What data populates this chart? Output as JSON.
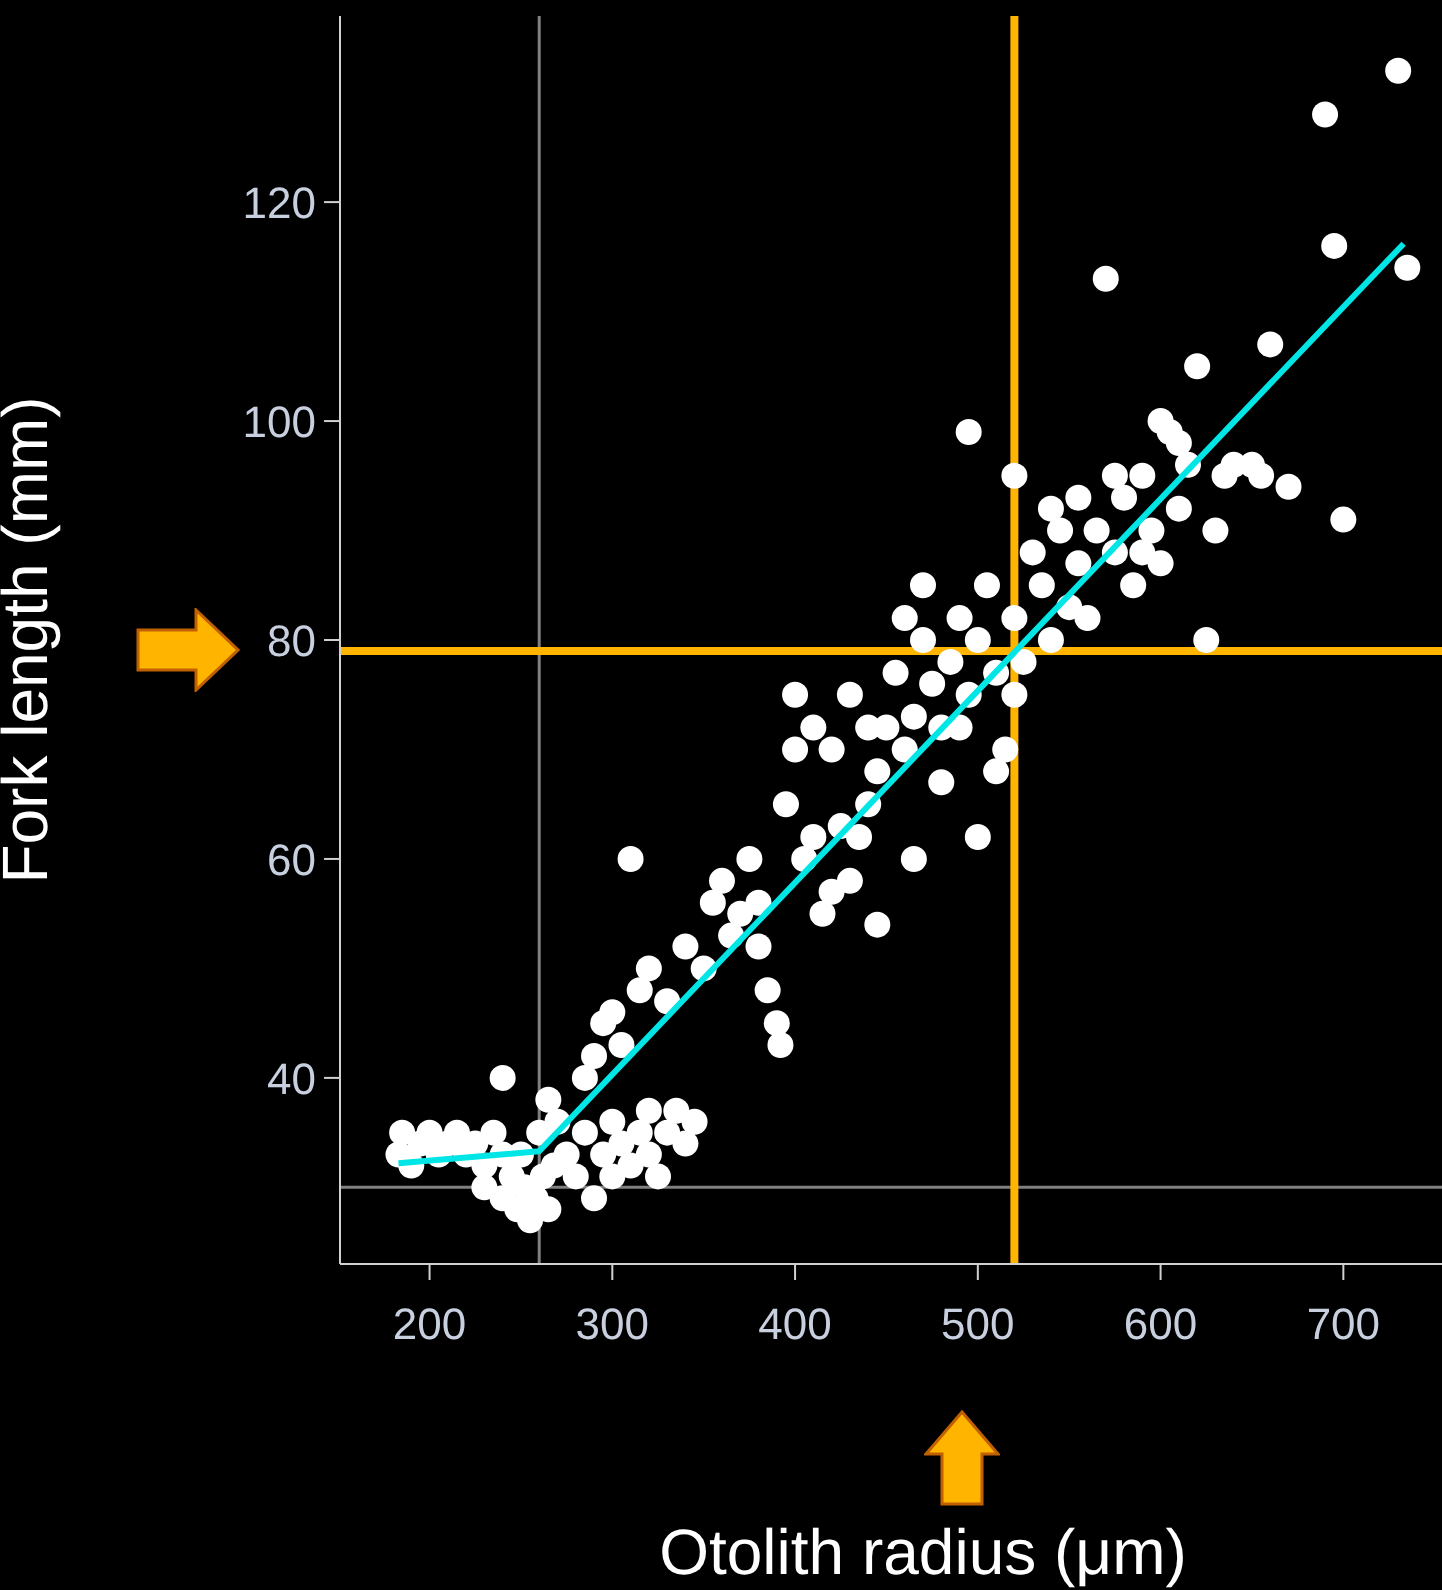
{
  "chart_data": {
    "type": "scatter",
    "xlabel": "Otolith radius (μm)",
    "ylabel": "Fork length (mm)",
    "xlim": [
      151,
      789
    ],
    "ylim": [
      23,
      137
    ],
    "xticks": [
      200,
      300,
      400,
      500,
      600,
      700
    ],
    "yticks": [
      40,
      60,
      80,
      100,
      120
    ],
    "marker": "circle",
    "series": [
      {
        "color": "#ffffff",
        "x": [
          183,
          185,
          190,
          195,
          200,
          205,
          210,
          215,
          220,
          225,
          230,
          235,
          240,
          245,
          230,
          240,
          248,
          252,
          255,
          258,
          262,
          265,
          250,
          260,
          268,
          270,
          265,
          240,
          275,
          280,
          285,
          290,
          295,
          300,
          305,
          310,
          315,
          320,
          325,
          330,
          335,
          340,
          345,
          300,
          320,
          285,
          290,
          295,
          300,
          305,
          310,
          315,
          320,
          330,
          340,
          350,
          355,
          360,
          365,
          370,
          375,
          380,
          385,
          390,
          392,
          380,
          395,
          400,
          405,
          410,
          415,
          420,
          425,
          430,
          435,
          440,
          445,
          400,
          410,
          420,
          430,
          440,
          445,
          450,
          455,
          460,
          465,
          470,
          475,
          480,
          485,
          490,
          495,
          500,
          505,
          510,
          515,
          520,
          525,
          530,
          535,
          540,
          545,
          550,
          555,
          560,
          565,
          570,
          575,
          580,
          585,
          590,
          595,
          600,
          605,
          610,
          615,
          620,
          625,
          630,
          635,
          640,
          650,
          655,
          660,
          670,
          690,
          695,
          700,
          730,
          735,
          465,
          480,
          495,
          500,
          520,
          510,
          490,
          470,
          460,
          520,
          540,
          555,
          600,
          610,
          575,
          590
        ],
        "values": [
          33,
          35,
          32,
          34,
          35,
          33,
          34,
          35,
          33,
          34,
          32,
          35,
          33,
          31,
          30,
          29,
          28,
          30,
          27,
          29,
          31,
          28,
          33,
          35,
          32,
          36,
          38,
          40,
          33,
          31,
          35,
          29,
          33,
          36,
          34,
          32,
          35,
          33,
          31,
          35,
          37,
          34,
          36,
          31,
          37,
          40,
          42,
          45,
          46,
          43,
          60,
          48,
          50,
          47,
          52,
          50,
          56,
          58,
          53,
          55,
          60,
          56,
          48,
          45,
          43,
          52,
          65,
          75,
          60,
          62,
          55,
          57,
          63,
          58,
          62,
          65,
          54,
          70,
          72,
          70,
          75,
          72,
          68,
          72,
          77,
          70,
          73,
          80,
          76,
          72,
          78,
          82,
          75,
          80,
          85,
          77,
          70,
          82,
          78,
          88,
          85,
          80,
          90,
          83,
          87,
          82,
          90,
          113,
          88,
          93,
          85,
          95,
          90,
          87,
          99,
          92,
          96,
          105,
          80,
          90,
          95,
          96,
          96,
          95,
          107,
          94,
          128,
          116,
          91,
          132,
          114,
          60,
          67,
          99,
          62,
          95,
          68,
          72,
          85,
          82,
          75,
          92,
          93,
          100,
          98,
          95,
          88
        ]
      },
      {
        "type": "line",
        "marker": "none",
        "color": "#00e5e5",
        "x": [
          183,
          260,
          733
        ],
        "values": [
          32.2,
          33.3,
          116.2
        ]
      }
    ],
    "ref_lines": [
      {
        "axis": "x",
        "value": 260,
        "color": "#808080"
      },
      {
        "axis": "y",
        "value": 30,
        "color": "#808080"
      },
      {
        "axis": "x",
        "value": 520,
        "color": "#ffb400"
      },
      {
        "axis": "y",
        "value": 79,
        "color": "#ffb400"
      }
    ]
  }
}
